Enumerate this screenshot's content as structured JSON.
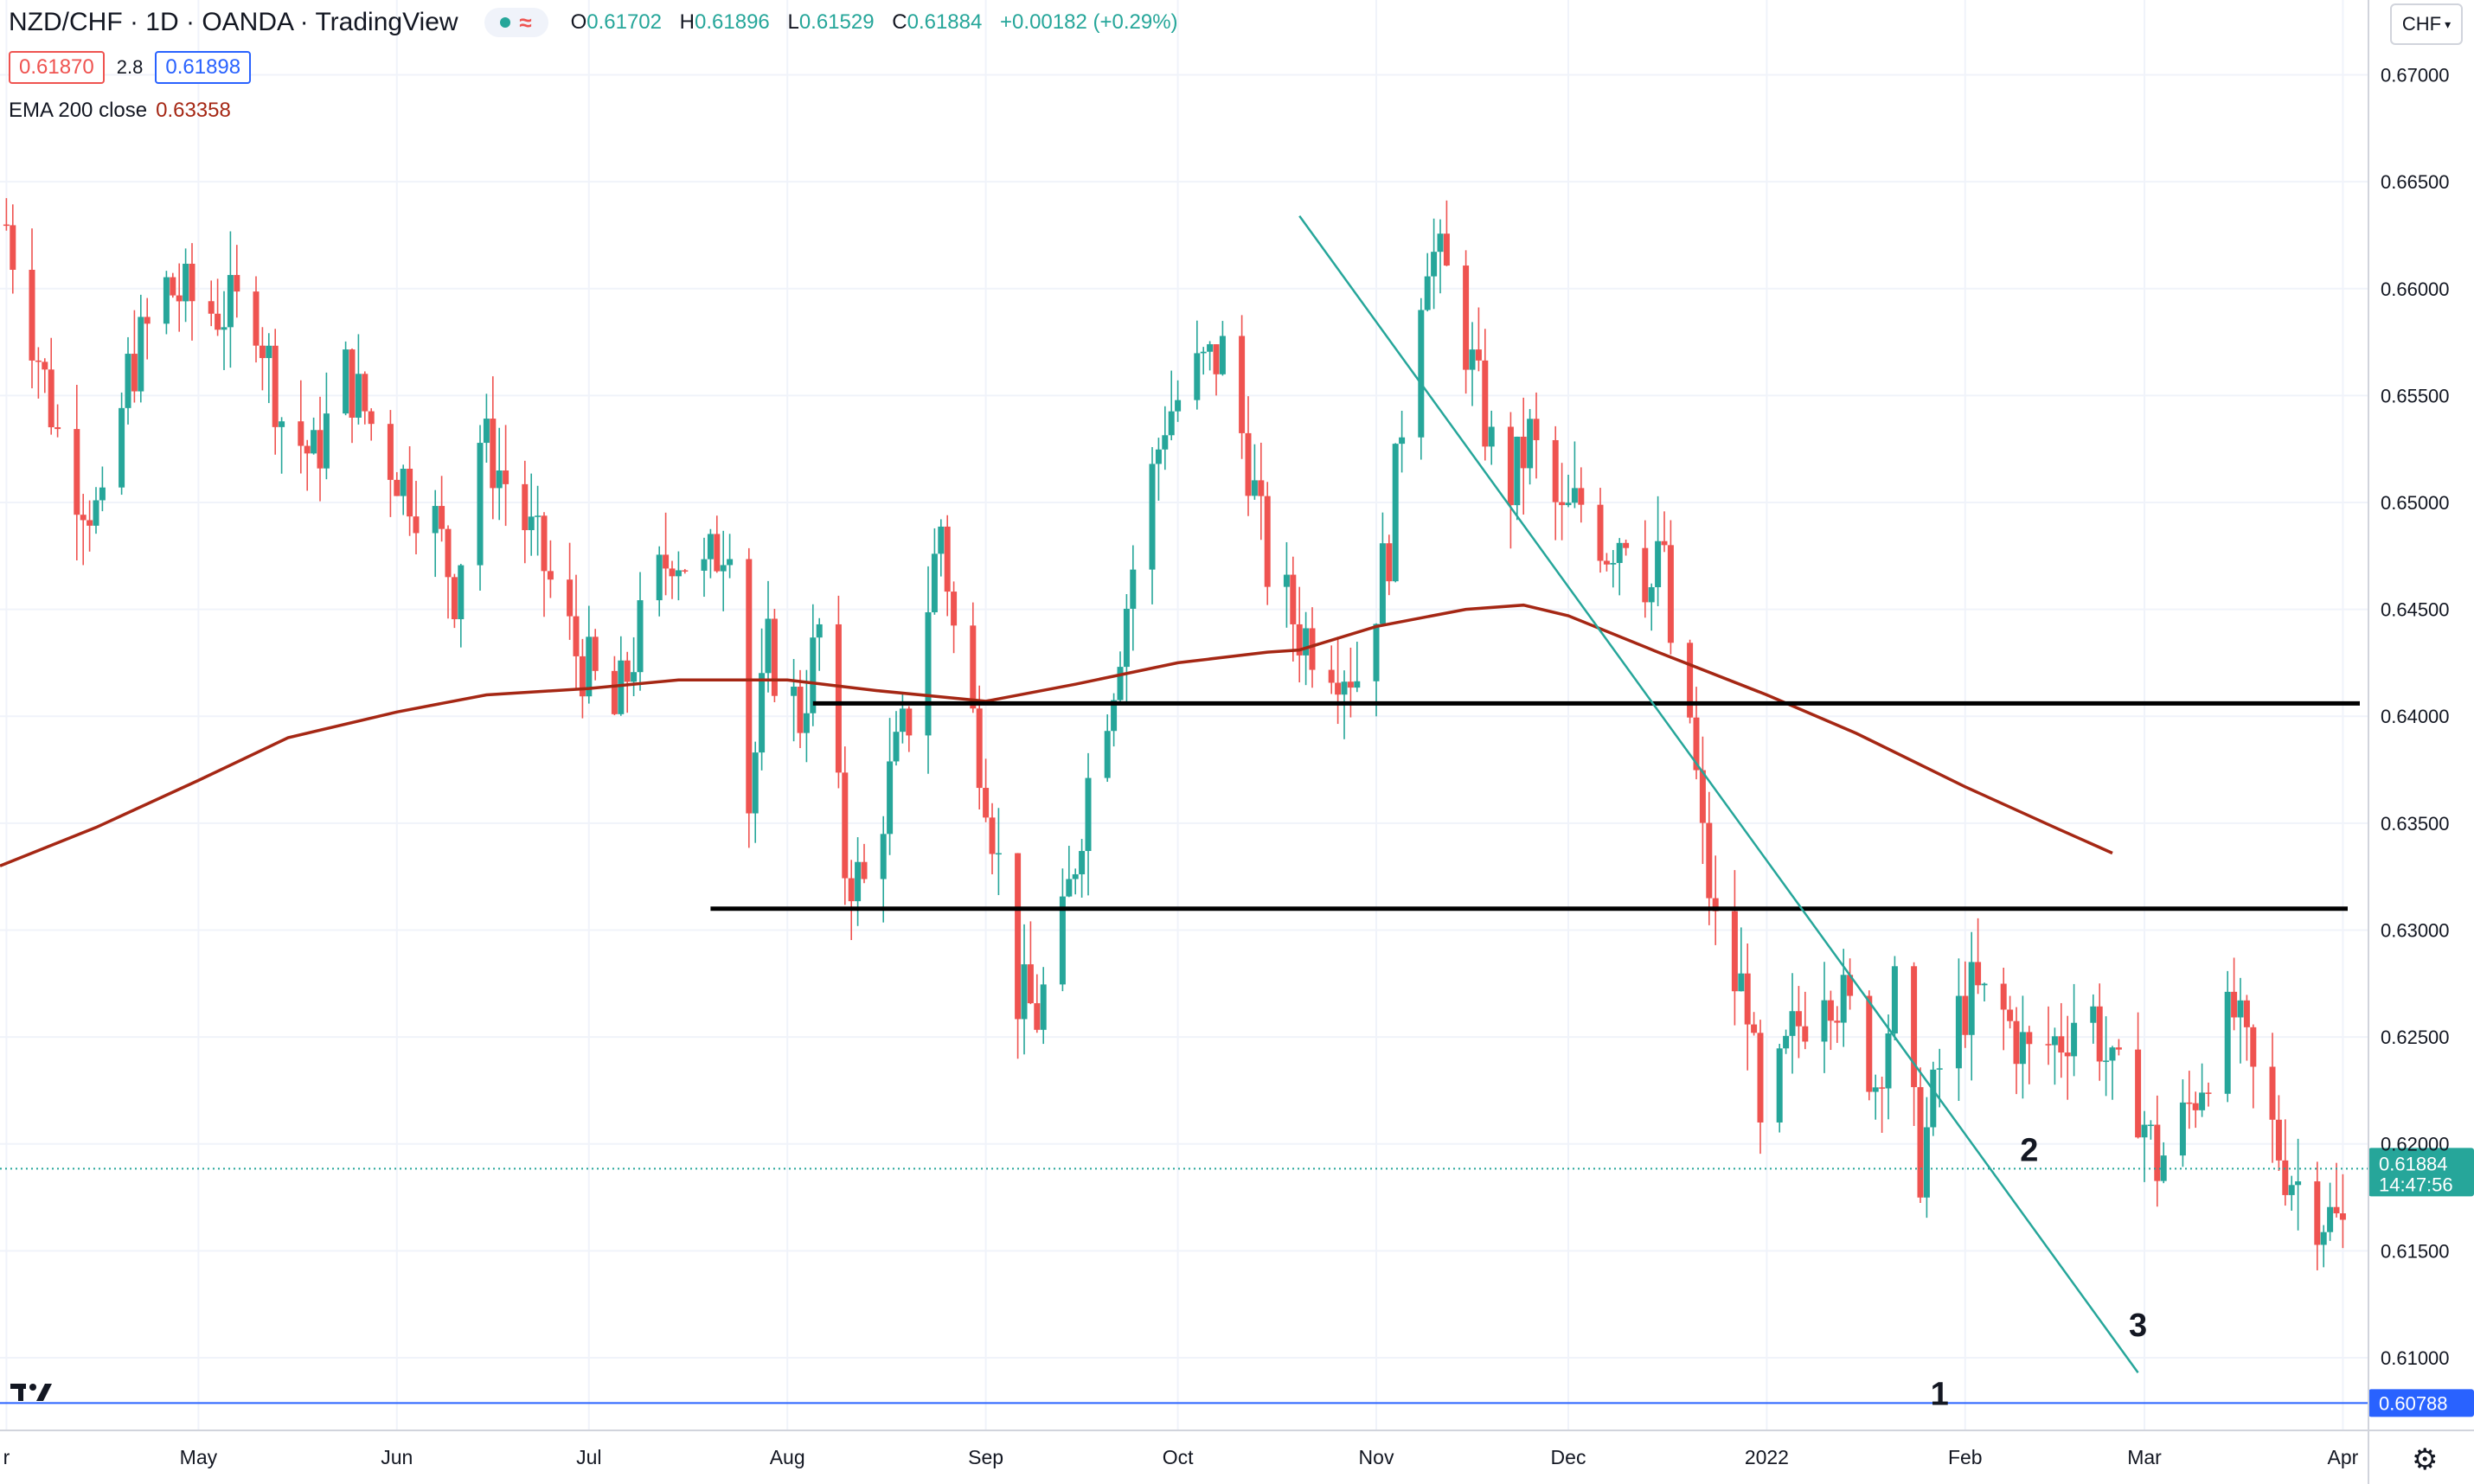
{
  "header": {
    "symbol": "NZD/CHF · 1D · OANDA · TradingView",
    "ohlc": {
      "open_label": "O",
      "open": "0.61702",
      "high_label": "H",
      "high": "0.61896",
      "low_label": "L",
      "low": "0.61529",
      "close_label": "C",
      "close": "0.61884",
      "change": "+0.00182 (+0.29%)"
    },
    "bid": "0.61870",
    "spread": "2.8",
    "ask": "0.61898",
    "indicator_name": "EMA 200 close",
    "indicator_value": "0.63358",
    "currency_button": "CHF"
  },
  "chart_data": {
    "type": "candlestick",
    "y_axis": {
      "ylim": [
        0.6066,
        0.6735
      ],
      "ticks": [
        "0.67000",
        "0.66500",
        "0.66000",
        "0.65500",
        "0.65000",
        "0.64500",
        "0.64000",
        "0.63500",
        "0.63000",
        "0.62500",
        "0.62000",
        "0.61500",
        "0.61000"
      ]
    },
    "x_axis": {
      "range": [
        "2021-03-31",
        "2022-04-05"
      ],
      "ticks": [
        {
          "date": "2021-04-01",
          "label": "r"
        },
        {
          "date": "2021-05-01",
          "label": "May"
        },
        {
          "date": "2021-06-01",
          "label": "Jun"
        },
        {
          "date": "2021-07-01",
          "label": "Jul"
        },
        {
          "date": "2021-08-01",
          "label": "Aug"
        },
        {
          "date": "2021-09-01",
          "label": "Sep"
        },
        {
          "date": "2021-10-01",
          "label": "Oct"
        },
        {
          "date": "2021-11-01",
          "label": "Nov"
        },
        {
          "date": "2021-12-01",
          "label": "Dec"
        },
        {
          "date": "2022-01-01",
          "label": "2022"
        },
        {
          "date": "2022-02-01",
          "label": "Feb"
        },
        {
          "date": "2022-03-01",
          "label": "Mar"
        },
        {
          "date": "2022-04-01",
          "label": "Apr"
        }
      ]
    },
    "price_path": [
      [
        "2021-04-01",
        0.663
      ],
      [
        "2021-04-10",
        0.652
      ],
      [
        "2021-04-16",
        0.649
      ],
      [
        "2021-04-20",
        0.656
      ],
      [
        "2021-04-26",
        0.66
      ],
      [
        "2021-05-03",
        0.659
      ],
      [
        "2021-05-10",
        0.659
      ],
      [
        "2021-05-14",
        0.654
      ],
      [
        "2021-05-19",
        0.652
      ],
      [
        "2021-05-24",
        0.656
      ],
      [
        "2021-05-31",
        0.652
      ],
      [
        "2021-06-07",
        0.649
      ],
      [
        "2021-06-10",
        0.646
      ],
      [
        "2021-06-14",
        0.653
      ],
      [
        "2021-06-18",
        0.651
      ],
      [
        "2021-06-24",
        0.647
      ],
      [
        "2021-06-29",
        0.643
      ],
      [
        "2021-07-05",
        0.64
      ],
      [
        "2021-07-09",
        0.644
      ],
      [
        "2021-07-14",
        0.648
      ],
      [
        "2021-07-19",
        0.6465
      ],
      [
        "2021-07-23",
        0.649
      ],
      [
        "2021-07-26",
        0.636
      ],
      [
        "2021-07-29",
        0.643
      ],
      [
        "2021-08-03",
        0.64
      ],
      [
        "2021-08-06",
        0.644
      ],
      [
        "2021-08-10",
        0.633
      ],
      [
        "2021-08-13",
        0.632
      ],
      [
        "2021-08-17",
        0.637
      ],
      [
        "2021-08-20",
        0.64
      ],
      [
        "2021-08-25",
        0.649
      ],
      [
        "2021-08-27",
        0.644
      ],
      [
        "2021-09-01",
        0.637
      ],
      [
        "2021-09-06",
        0.627
      ],
      [
        "2021-09-09",
        0.626
      ],
      [
        "2021-09-13",
        0.63
      ],
      [
        "2021-09-17",
        0.637
      ],
      [
        "2021-09-21",
        0.642
      ],
      [
        "2021-09-24",
        0.647
      ],
      [
        "2021-09-29",
        0.654
      ],
      [
        "2021-10-04",
        0.656
      ],
      [
        "2021-10-08",
        0.657
      ],
      [
        "2021-10-12",
        0.652
      ],
      [
        "2021-10-15",
        0.647
      ],
      [
        "2021-10-20",
        0.644
      ],
      [
        "2021-10-25",
        0.643
      ],
      [
        "2021-10-29",
        0.642
      ],
      [
        "2021-11-03",
        0.648
      ],
      [
        "2021-11-06",
        0.657
      ],
      [
        "2021-11-09",
        0.662
      ],
      [
        "2021-11-13",
        0.66
      ],
      [
        "2021-11-17",
        0.655
      ],
      [
        "2021-11-21",
        0.65
      ],
      [
        "2021-11-25",
        0.653
      ],
      [
        "2021-11-30",
        0.649
      ],
      [
        "2021-12-03",
        0.65
      ],
      [
        "2021-12-07",
        0.648
      ],
      [
        "2021-12-10",
        0.649
      ],
      [
        "2021-12-14",
        0.646
      ],
      [
        "2021-12-16",
        0.648
      ],
      [
        "2021-12-17",
        0.642
      ],
      [
        "2021-12-20",
        0.64
      ],
      [
        "2021-12-22",
        0.634
      ],
      [
        "2021-12-25",
        0.628
      ],
      [
        "2021-12-29",
        0.627
      ],
      [
        "2021-12-31",
        0.62
      ],
      [
        "2022-01-05",
        0.625
      ],
      [
        "2022-01-10",
        0.628
      ],
      [
        "2022-01-14",
        0.626
      ],
      [
        "2022-01-18",
        0.623
      ],
      [
        "2022-01-21",
        0.627
      ],
      [
        "2022-01-25",
        0.619
      ],
      [
        "2022-01-29",
        0.625
      ],
      [
        "2022-02-02",
        0.627
      ],
      [
        "2022-02-07",
        0.626
      ],
      [
        "2022-02-11",
        0.624
      ],
      [
        "2022-02-16",
        0.625
      ],
      [
        "2022-02-20",
        0.627
      ],
      [
        "2022-02-24",
        0.623
      ],
      [
        "2022-02-28",
        0.622
      ],
      [
        "2022-03-03",
        0.619
      ],
      [
        "2022-03-07",
        0.621
      ],
      [
        "2022-03-11",
        0.624
      ],
      [
        "2022-03-15",
        0.626
      ],
      [
        "2022-03-19",
        0.622
      ],
      [
        "2022-03-23",
        0.619
      ],
      [
        "2022-03-28",
        0.617
      ],
      [
        "2022-04-01",
        0.616
      ]
    ],
    "ema200": [
      [
        "2021-03-31",
        0.633
      ],
      [
        "2021-04-15",
        0.6348
      ],
      [
        "2021-05-01",
        0.637
      ],
      [
        "2021-05-15",
        0.639
      ],
      [
        "2021-06-01",
        0.6402
      ],
      [
        "2021-06-15",
        0.641
      ],
      [
        "2021-07-01",
        0.6413
      ],
      [
        "2021-07-15",
        0.6417
      ],
      [
        "2021-08-01",
        0.6417
      ],
      [
        "2021-08-15",
        0.6412
      ],
      [
        "2021-09-01",
        0.6407
      ],
      [
        "2021-09-15",
        0.6415
      ],
      [
        "2021-10-01",
        0.6425
      ],
      [
        "2021-10-15",
        0.643
      ],
      [
        "2021-10-20",
        0.6431
      ],
      [
        "2021-11-01",
        0.6442
      ],
      [
        "2021-11-15",
        0.645
      ],
      [
        "2021-11-24",
        0.6452
      ],
      [
        "2021-12-01",
        0.6447
      ],
      [
        "2021-12-15",
        0.643
      ],
      [
        "2022-01-01",
        0.641
      ],
      [
        "2022-01-15",
        0.6392
      ],
      [
        "2022-02-01",
        0.6367
      ],
      [
        "2022-02-15",
        0.6348
      ],
      [
        "2022-02-24",
        0.6336
      ]
    ],
    "horizontal_lines": [
      0.6406,
      0.631
    ],
    "trendline": [
      [
        "2021-10-20",
        0.6634
      ],
      [
        "2022-02-28",
        0.6093
      ]
    ],
    "current_price": "0.61884",
    "countdown": "14:47:56",
    "marker_price": "0.60788",
    "wave_labels": [
      "1",
      "2",
      "3"
    ]
  }
}
